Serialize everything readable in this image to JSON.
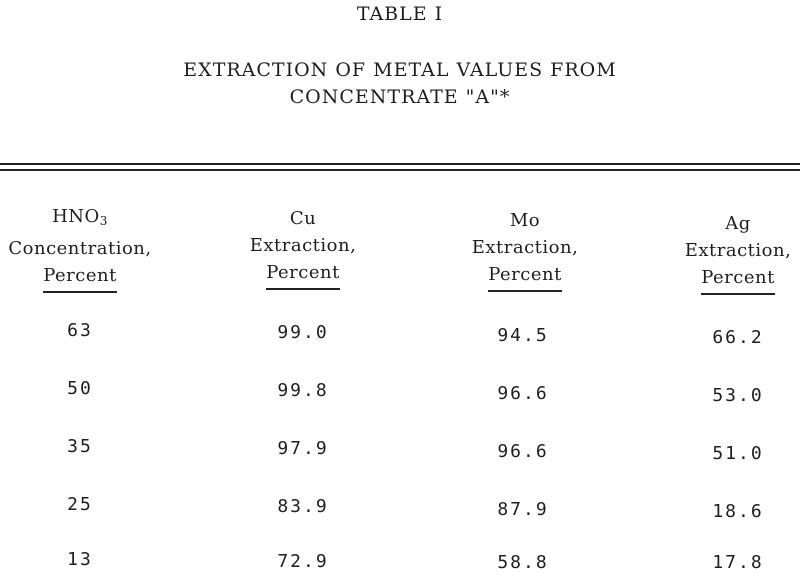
{
  "document": {
    "table_label": "TABLE I",
    "title_line1": "EXTRACTION OF METAL VALUES FROM",
    "title_line2": "CONCENTRATE \"A\"*"
  },
  "table": {
    "headers": [
      {
        "line1": "HNO",
        "line1_sub": "3",
        "line2": "Concentration,",
        "line3": "Percent"
      },
      {
        "line1": "Cu",
        "line2": "Extraction,",
        "line3": "Percent"
      },
      {
        "line1": "Mo",
        "line2": "Extraction,",
        "line3": "Percent"
      },
      {
        "line1": "Ag",
        "line2": "Extraction,",
        "line3": "Percent"
      }
    ],
    "rows": [
      [
        "63",
        "99.0",
        "94.5",
        "66.2"
      ],
      [
        "50",
        "99.8",
        "96.6",
        "53.0"
      ],
      [
        "35",
        "97.9",
        "96.6",
        "51.0"
      ],
      [
        "25",
        "83.9",
        "87.9",
        "18.6"
      ],
      [
        "13",
        "72.9",
        "58.8",
        "17.8"
      ]
    ]
  }
}
